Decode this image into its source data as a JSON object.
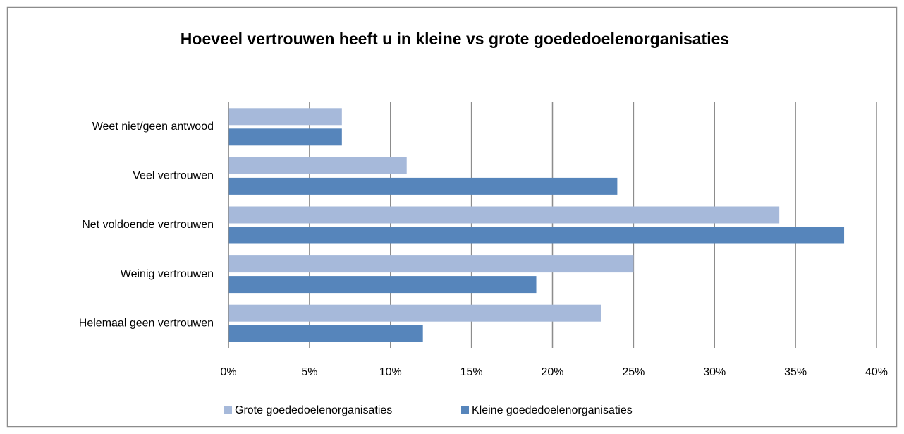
{
  "chart_data": {
    "type": "bar",
    "orientation": "horizontal",
    "title": "Hoeveel vertrouwen heeft u in kleine vs grote goededoelenorganisaties",
    "categories": [
      "Weet niet/geen antwood",
      "Veel vertrouwen",
      "Net voldoende vertrouwen",
      "Weinig vertrouwen",
      "Helemaal geen vertrouwen"
    ],
    "series": [
      {
        "name": "Grote goededoelenorganisaties",
        "color": "#a6b9da",
        "values": [
          7,
          11,
          34,
          25,
          23
        ]
      },
      {
        "name": "Kleine goededoelenorganisaties",
        "color": "#5685bb",
        "values": [
          7,
          24,
          38,
          19,
          12
        ]
      }
    ],
    "xlim": [
      0,
      40
    ],
    "xticks": [
      {
        "value": 0,
        "label": "0%"
      },
      {
        "value": 5,
        "label": "5%"
      },
      {
        "value": 10,
        "label": "10%"
      },
      {
        "value": 15,
        "label": "15%"
      },
      {
        "value": 20,
        "label": "20%"
      },
      {
        "value": 25,
        "label": "25%"
      },
      {
        "value": 30,
        "label": "30%"
      },
      {
        "value": 35,
        "label": "35%"
      },
      {
        "value": 40,
        "label": "40%"
      }
    ],
    "grid": true,
    "legend": "bottom"
  }
}
